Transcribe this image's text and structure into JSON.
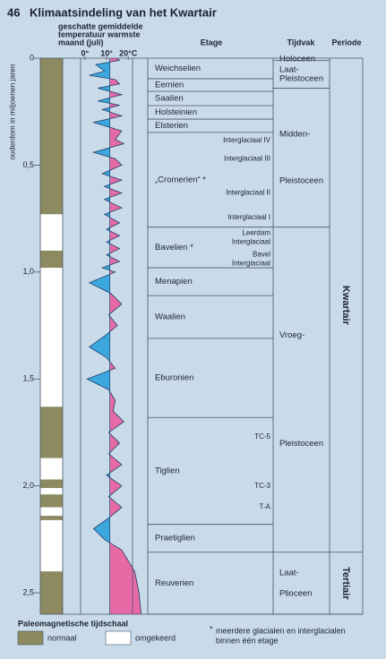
{
  "chart_data": {
    "type": "timescale",
    "number": "46",
    "title": "Klimaatsindeling van het Kwartair",
    "y_label": "ouderdom in miljoenen jaren",
    "ylim": [
      0,
      2.6
    ],
    "yticks": [
      0,
      {
        "value": 0.5,
        "label": "0,5"
      },
      {
        "value": 1.0,
        "label": "1,0"
      },
      {
        "value": 1.5,
        "label": "1,5"
      },
      {
        "value": 2.0,
        "label": "2,0"
      },
      {
        "value": 2.5,
        "label": "2,5"
      }
    ],
    "paleomagnetism": {
      "title": "Paleomagnetische tijdschaal",
      "normal_label": "normaal",
      "normal_color": "#8c8a5e",
      "reversed_label": "omgekeerd",
      "reversed_color": "#ffffff",
      "intervals": [
        {
          "from": 0,
          "to": 0.73,
          "normal": true
        },
        {
          "from": 0.73,
          "to": 0.9,
          "normal": false
        },
        {
          "from": 0.9,
          "to": 0.98,
          "normal": true
        },
        {
          "from": 0.98,
          "to": 1.63,
          "normal": false
        },
        {
          "from": 1.63,
          "to": 1.87,
          "normal": true
        },
        {
          "from": 1.87,
          "to": 1.97,
          "normal": false
        },
        {
          "from": 1.97,
          "to": 2.01,
          "normal": true
        },
        {
          "from": 2.01,
          "to": 2.04,
          "normal": false
        },
        {
          "from": 2.04,
          "to": 2.1,
          "normal": true
        },
        {
          "from": 2.1,
          "to": 2.14,
          "normal": false
        },
        {
          "from": 2.14,
          "to": 2.16,
          "normal": true
        },
        {
          "from": 2.16,
          "to": 2.4,
          "normal": false
        },
        {
          "from": 2.4,
          "to": 2.6,
          "normal": true
        }
      ]
    },
    "temperature": {
      "label_lines": [
        "geschatte gemiddelde",
        "temperatuur warmste",
        "maand (juli)"
      ],
      "xlim": [
        -2,
        22
      ],
      "xticks": [
        {
          "value": 0,
          "label": "0°"
        },
        {
          "value": 10,
          "label": "10°"
        },
        {
          "value": 20,
          "label": "20°C"
        }
      ],
      "ref": 11.5,
      "cold_color": "#3ca7dd",
      "warm_color": "#e66aa6",
      "line_color": "#1f3f6e",
      "x": [
        0,
        0.01,
        0.03,
        0.06,
        0.08,
        0.1,
        0.12,
        0.14,
        0.17,
        0.2,
        0.22,
        0.24,
        0.27,
        0.3,
        0.34,
        0.38,
        0.4,
        0.44,
        0.47,
        0.5,
        0.54,
        0.57,
        0.6,
        0.63,
        0.66,
        0.7,
        0.73,
        0.77,
        0.8,
        0.83,
        0.86,
        0.89,
        0.92,
        0.95,
        0.98,
        1.0,
        1.05,
        1.1,
        1.15,
        1.2,
        1.25,
        1.3,
        1.35,
        1.4,
        1.45,
        1.5,
        1.55,
        1.6,
        1.65,
        1.7,
        1.75,
        1.8,
        1.85,
        1.9,
        1.95,
        2.0,
        2.05,
        2.1,
        2.15,
        2.2,
        2.25,
        2.3,
        2.4,
        2.5,
        2.6
      ],
      "values": [
        15,
        16,
        5,
        9,
        2,
        14,
        16,
        6,
        17,
        6,
        16,
        8,
        17,
        4,
        17,
        14,
        18,
        4,
        14,
        17,
        8,
        17,
        9,
        17,
        9,
        17,
        9,
        16,
        10,
        16,
        10,
        16,
        10,
        16,
        8,
        14,
        2,
        12,
        17,
        11,
        15,
        9,
        2,
        10,
        14,
        1,
        11,
        14,
        13,
        18,
        11,
        16,
        11,
        17,
        10,
        17,
        11,
        17,
        11,
        4,
        9,
        17,
        23,
        25,
        26
      ]
    },
    "stage_header": "Etage",
    "stages": [
      {
        "name": "Weichselien",
        "from": 0,
        "to": 0.096
      },
      {
        "name": "Eemien",
        "from": 0.096,
        "to": 0.155
      },
      {
        "name": "Saalien",
        "from": 0.155,
        "to": 0.222
      },
      {
        "name": "Holsteinien",
        "from": 0.222,
        "to": 0.285
      },
      {
        "name": "Elsterien",
        "from": 0.285,
        "to": 0.347
      },
      {
        "name": "„Cromerien“ *",
        "from": 0.347,
        "to": 0.79,
        "subs": [
          {
            "lines": [
              "Interglaciaal IV"
            ],
            "at": 0.385
          },
          {
            "lines": [
              "Interglaciaal III"
            ],
            "at": 0.47
          },
          {
            "lines": [
              "Interglaciaal II"
            ],
            "at": 0.63
          },
          {
            "lines": [
              "Interglaciaal I"
            ],
            "at": 0.745
          }
        ]
      },
      {
        "name": "Bavelien *",
        "from": 0.79,
        "to": 0.98,
        "subs": [
          {
            "lines": [
              "Leerdam",
              "Interglaciaal"
            ],
            "at": 0.84
          },
          {
            "lines": [
              "Bavel",
              "Interglaciaal"
            ],
            "at": 0.94
          }
        ]
      },
      {
        "name": "Menapien",
        "from": 0.98,
        "to": 1.11
      },
      {
        "name": "Waalien",
        "from": 1.11,
        "to": 1.31
      },
      {
        "name": "Eburonien",
        "from": 1.31,
        "to": 1.68
      },
      {
        "name": "Tiglien",
        "from": 1.68,
        "to": 2.18,
        "subs": [
          {
            "lines": [
              "TC-5"
            ],
            "at": 1.77
          },
          {
            "lines": [
              "TC-3"
            ],
            "at": 2.0
          },
          {
            "lines": [
              "T-A"
            ],
            "at": 2.1
          }
        ]
      },
      {
        "name": "Praetiglien",
        "from": 2.18,
        "to": 2.31
      },
      {
        "name": "Reuverien",
        "from": 2.31,
        "to": 2.6
      }
    ],
    "epoch_header": "Tijdvak",
    "epochs": [
      {
        "lines": [
          "Holoceen"
        ],
        "from": 0,
        "to": 0.01
      },
      {
        "lines": [
          "Laat-",
          "Pleistoceen"
        ],
        "from": 0.01,
        "to": 0.14
      },
      {
        "lines": [
          "Midden-",
          "Pleistoceen"
        ],
        "from": 0.14,
        "to": 0.79
      },
      {
        "lines": [
          "Vroeg-",
          "Pleistoceen"
        ],
        "from": 0.79,
        "to": 2.31
      },
      {
        "lines": [
          "Laat-",
          "Plioceen"
        ],
        "from": 2.31,
        "to": 2.6
      }
    ],
    "period_header": "Periode",
    "periods": [
      {
        "name": "Kwartair",
        "from": 0,
        "to": 2.31
      },
      {
        "name": "Tertiair",
        "from": 2.31,
        "to": 2.6
      }
    ],
    "footnote_mark": "*",
    "footnote_lines": [
      "meerdere glacialen en interglacialen",
      "binnen één etage"
    ]
  }
}
